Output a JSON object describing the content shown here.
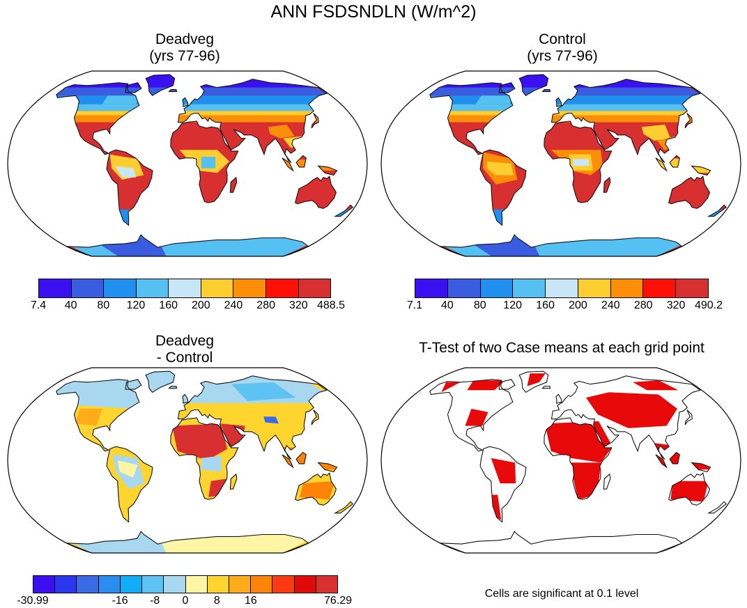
{
  "figure": {
    "title": "ANN FSDSNDLN (W/m^2)",
    "panels": [
      {
        "title_line1": "Deadveg",
        "title_line2": "(yrs 77-96)",
        "colorbar": {
          "colors": [
            "#3b10f0",
            "#3a5ce0",
            "#1f8ff0",
            "#55c0f2",
            "#c8e6f6",
            "#fecd2f",
            "#fd8e08",
            "#fd1006",
            "#d82f30"
          ],
          "labels": [
            "7.4",
            "40",
            "80",
            "120",
            "160",
            "200",
            "240",
            "280",
            "320",
            "488.5"
          ]
        }
      },
      {
        "title_line1": "Control",
        "title_line2": "(yrs 77-96)",
        "colorbar": {
          "colors": [
            "#3b10f0",
            "#3a5ce0",
            "#1f8ff0",
            "#55c0f2",
            "#c8e6f6",
            "#fecd2f",
            "#fd8e08",
            "#fd1006",
            "#d82f30"
          ],
          "labels": [
            "7.1",
            "40",
            "80",
            "120",
            "160",
            "200",
            "240",
            "280",
            "320",
            "490.2"
          ]
        }
      },
      {
        "title_line1": "Deadveg",
        "title_line2": "- Control",
        "colorbar": {
          "colors": [
            "#3b10f0",
            "#2a36f0",
            "#3a6ae6",
            "#2a8ef0",
            "#10aef6",
            "#5ec2f2",
            "#a8d8f0",
            "#fef6a4",
            "#fed42e",
            "#feac1a",
            "#fd8408",
            "#fd3a10",
            "#e00a0a",
            "#d82f30"
          ],
          "labels": [
            "-30.99",
            "-16",
            "-8",
            "0",
            "8",
            "16",
            "76.29"
          ]
        }
      },
      {
        "title_line1": "T-Test of two Case means at each grid point",
        "note": "Cells are significant at 0.1 level",
        "significant_color": "#e80a0a"
      }
    ]
  }
}
